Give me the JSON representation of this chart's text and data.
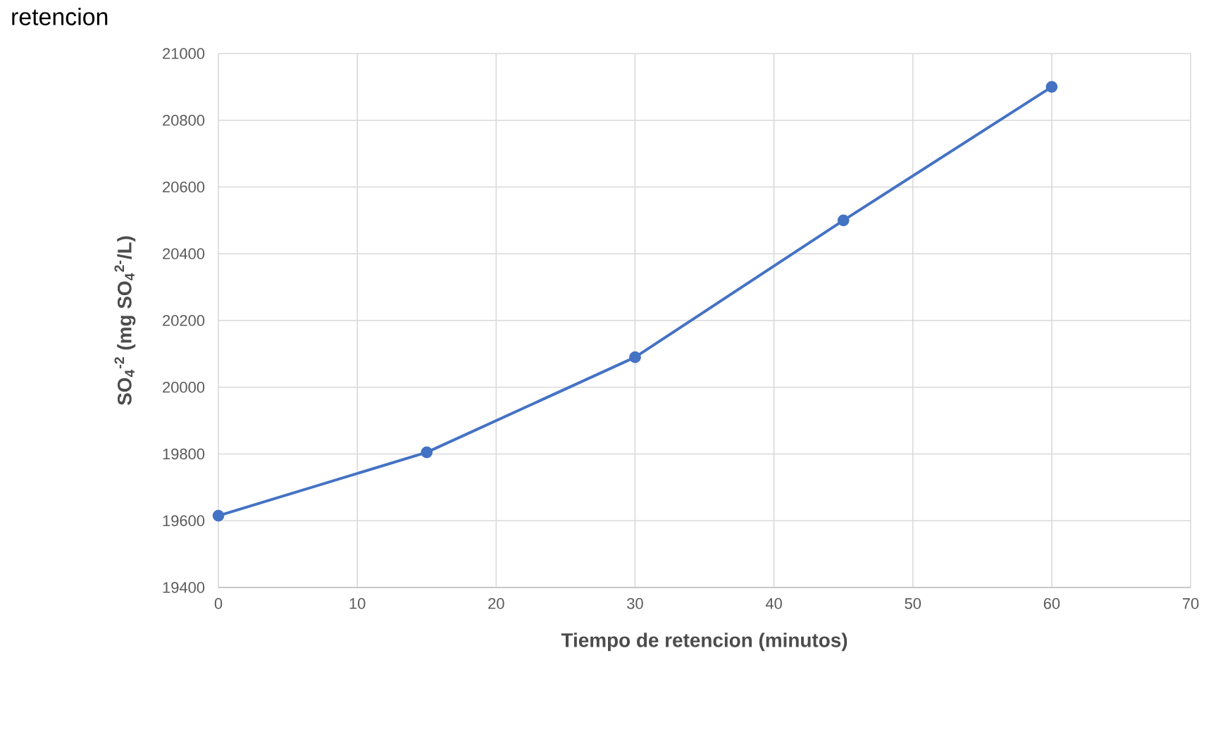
{
  "chart_data": {
    "type": "line",
    "annotations": [
      "retencion"
    ],
    "xlabel": "Tiempo de retencion (minutos)",
    "ylabel": "SO$_{4}$$^{-2}$  (mg SO$_{4}$$^{2-}$/L)",
    "x": [
      0,
      15,
      30,
      45,
      60
    ],
    "series": [
      {
        "color": "#4472c4",
        "values": [
          19615,
          19805,
          20090,
          20500,
          20900
        ]
      }
    ],
    "xlim": [
      0,
      70
    ],
    "xticks": [
      0,
      10,
      20,
      30,
      40,
      50,
      60,
      70
    ],
    "ylim": [
      19400,
      21000
    ],
    "yticks": [
      19400,
      19600,
      19800,
      20000,
      20200,
      20400,
      20600,
      20800,
      21000
    ],
    "grid": true,
    "marker": "circle",
    "line_style": "solid"
  }
}
